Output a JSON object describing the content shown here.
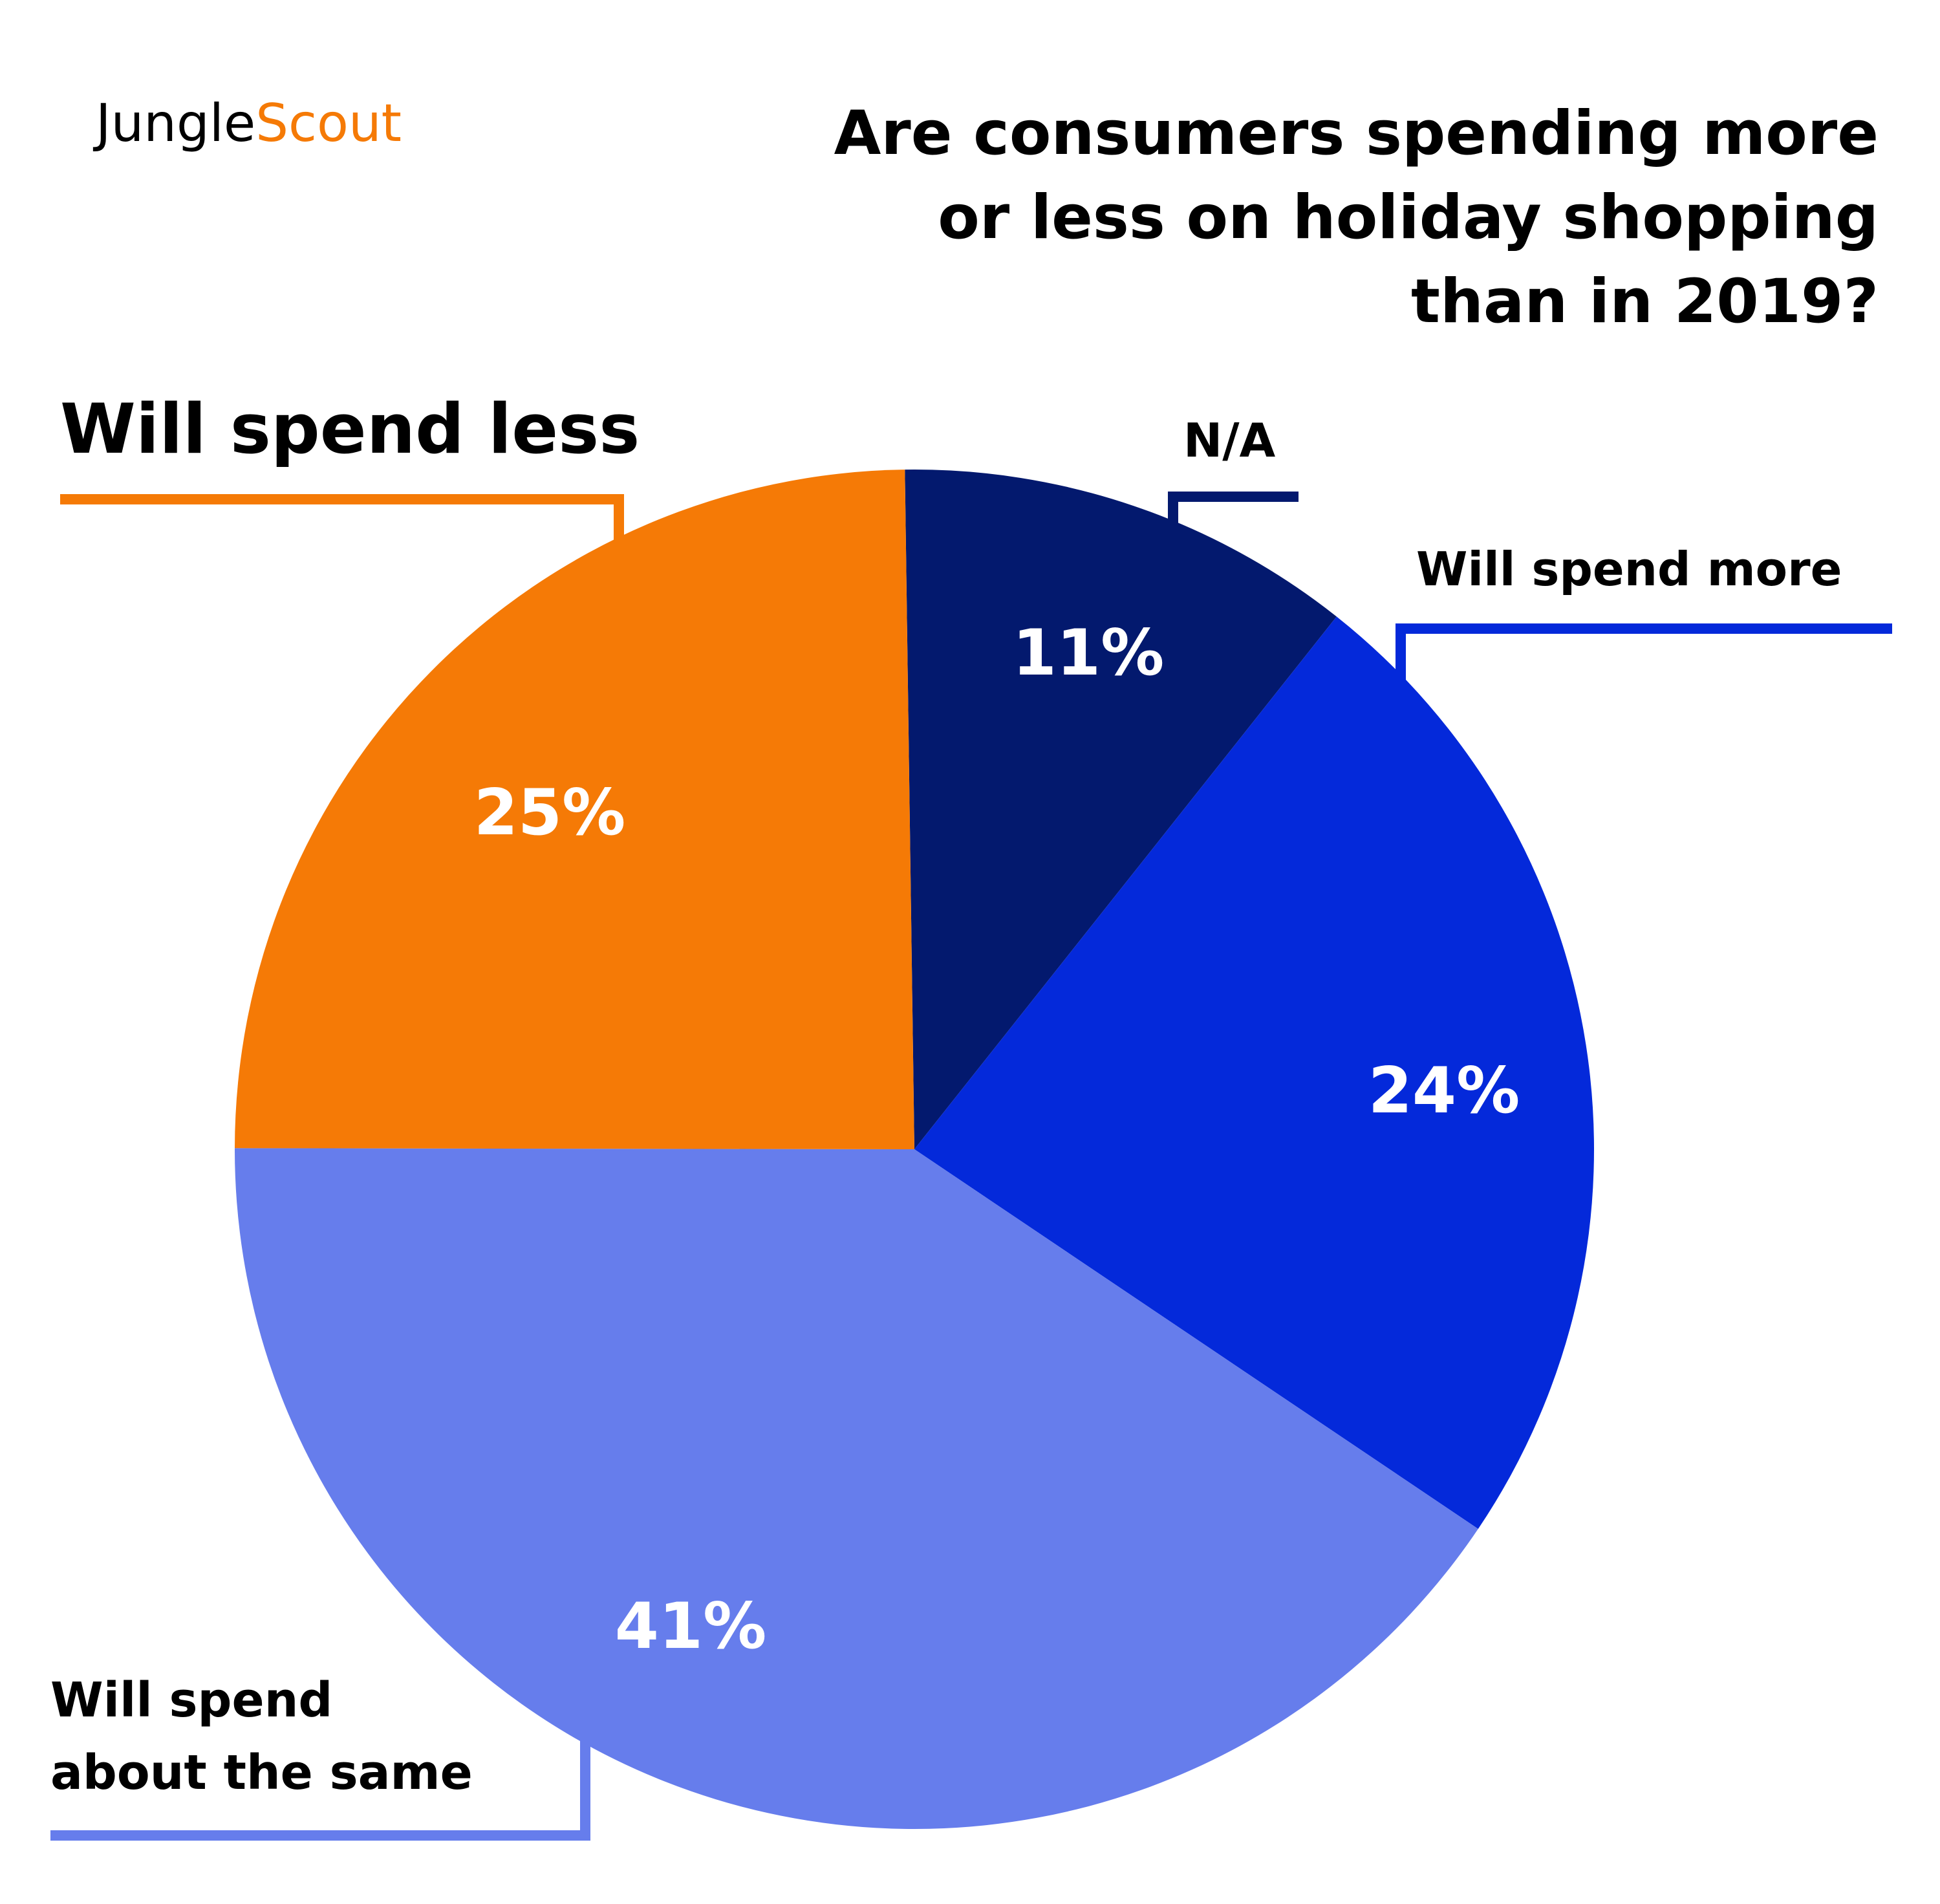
{
  "brand": {
    "part1": "Jungle",
    "part2": "Scout",
    "part1_color": "#000000",
    "part2_color": "#F57A06"
  },
  "chart_data": {
    "type": "pie",
    "title": "Are consumers spending more or less on holiday shopping than in 2019?",
    "title_lines": [
      "Are consumers spending more",
      "or less on holiday shopping",
      "than in 2019?"
    ],
    "start_angle_deg": 0,
    "direction": "clockwise",
    "slices": [
      {
        "label": "N/A",
        "label_lines": [
          "N/A"
        ],
        "value": 11,
        "value_label": "11%",
        "color": "#03196E"
      },
      {
        "label": "Will spend more",
        "label_lines": [
          "Will spend more"
        ],
        "value": 24,
        "value_label": "24%",
        "color": "#0429DA"
      },
      {
        "label": "Will spend about the same",
        "label_lines": [
          "Will spend",
          "about the same"
        ],
        "value": 41,
        "value_label": "41%",
        "color": "#667DEC"
      },
      {
        "label": "Will spend less",
        "label_lines": [
          "Will spend less"
        ],
        "value": 25,
        "value_label": "25%",
        "color": "#F57A06"
      }
    ],
    "legend": "callout-labels"
  }
}
